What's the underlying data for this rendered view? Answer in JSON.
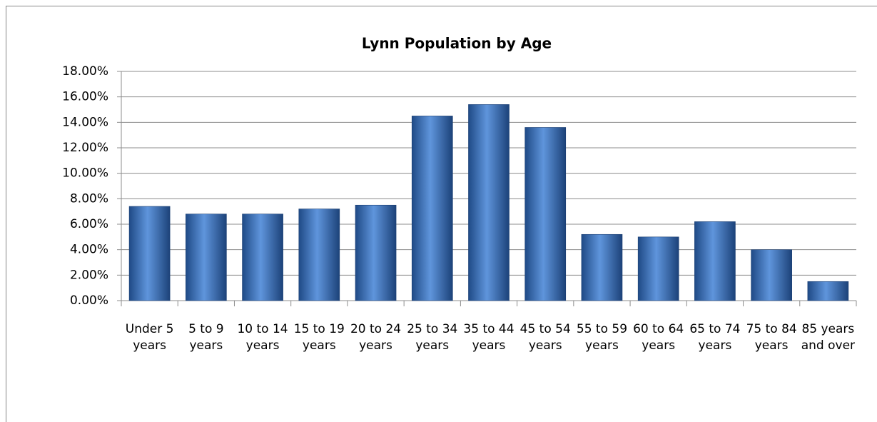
{
  "chart_data": {
    "type": "bar",
    "title": "Lynn Population by Age",
    "categories": [
      "Under 5 years",
      "5 to 9 years",
      "10 to 14 years",
      "15 to 19 years",
      "20 to 24 years",
      "25 to 34 years",
      "35 to 44 years",
      "45 to 54 years",
      "55 to 59 years",
      "60 to 64 years",
      "65 to 74 years",
      "75 to 84 years",
      "85 years and over"
    ],
    "values": [
      7.4,
      6.8,
      6.8,
      7.2,
      7.5,
      14.5,
      15.4,
      13.6,
      5.2,
      5.0,
      6.2,
      4.0,
      1.5
    ],
    "color": "#3c6fb6",
    "ylim": [
      0,
      18
    ],
    "yticks": [
      {
        "value": 0,
        "label": "0.00%"
      },
      {
        "value": 2,
        "label": "2.00%"
      },
      {
        "value": 4,
        "label": "4.00%"
      },
      {
        "value": 6,
        "label": "6.00%"
      },
      {
        "value": 8,
        "label": "8.00%"
      },
      {
        "value": 10,
        "label": "10.00%"
      },
      {
        "value": 12,
        "label": "12.00%"
      },
      {
        "value": 14,
        "label": "14.00%"
      },
      {
        "value": 16,
        "label": "16.00%"
      },
      {
        "value": 18,
        "label": "18.00%"
      }
    ],
    "grid": true
  }
}
